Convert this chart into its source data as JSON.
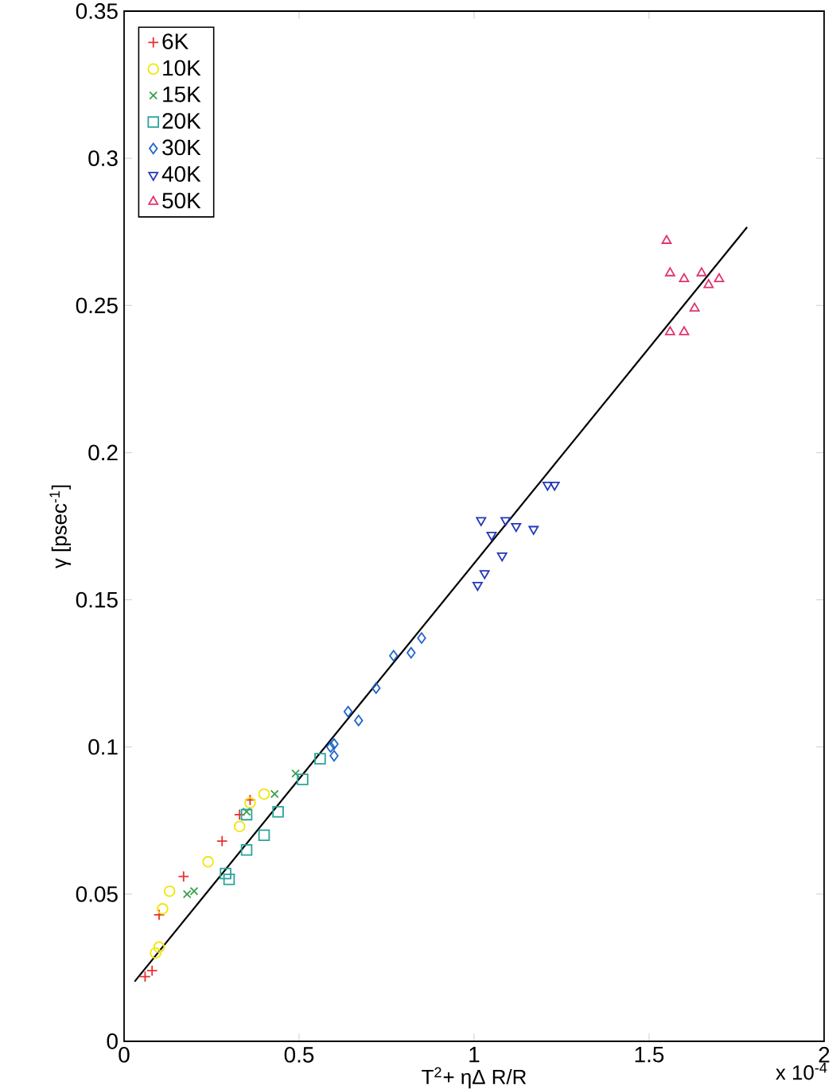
{
  "chart_data": {
    "type": "scatter",
    "xlabel": "T$^{2}$+ ηΔ R/R",
    "ylabel": "γ [psec$^{-1}$]",
    "annotations": [
      "x 10$^{-4}$"
    ],
    "xlim": [
      0,
      2
    ],
    "xticks": [
      0,
      0.5,
      1,
      1.5,
      2
    ],
    "ylim": [
      0,
      0.35
    ],
    "yticks": [
      0,
      0.05,
      0.1,
      0.15,
      0.2,
      0.25,
      0.3,
      0.35
    ],
    "grid": false,
    "legend": "top left",
    "series": [
      {
        "name": "6K",
        "color": "#e8312f",
        "marker": "plus",
        "x": [
          0.06,
          0.08,
          0.1,
          0.17,
          0.28,
          0.33,
          0.36
        ],
        "values": [
          0.022,
          0.024,
          0.043,
          0.056,
          0.068,
          0.077,
          0.082
        ]
      },
      {
        "name": "10K",
        "color": "#f2e600",
        "marker": "circle",
        "x": [
          0.09,
          0.1,
          0.11,
          0.13,
          0.24,
          0.33,
          0.36,
          0.4
        ],
        "values": [
          0.03,
          0.032,
          0.045,
          0.051,
          0.061,
          0.073,
          0.081,
          0.084
        ]
      },
      {
        "name": "15K",
        "color": "#3aa04a",
        "marker": "x",
        "x": [
          0.18,
          0.2,
          0.35,
          0.43,
          0.49
        ],
        "values": [
          0.05,
          0.051,
          0.078,
          0.084,
          0.091
        ]
      },
      {
        "name": "20K",
        "color": "#2aa39a",
        "marker": "square",
        "x": [
          0.29,
          0.3,
          0.35,
          0.35,
          0.4,
          0.44,
          0.51,
          0.56
        ],
        "values": [
          0.057,
          0.055,
          0.065,
          0.077,
          0.07,
          0.078,
          0.089,
          0.096
        ]
      },
      {
        "name": "30K",
        "color": "#1f66c7",
        "marker": "diamond",
        "x": [
          0.59,
          0.6,
          0.6,
          0.64,
          0.67,
          0.72,
          0.77,
          0.82,
          0.85
        ],
        "values": [
          0.1,
          0.097,
          0.101,
          0.112,
          0.109,
          0.12,
          0.131,
          0.132,
          0.137
        ]
      },
      {
        "name": "40K",
        "color": "#2238b8",
        "marker": "triangle-down",
        "x": [
          1.01,
          1.02,
          1.03,
          1.05,
          1.08,
          1.09,
          1.12,
          1.17,
          1.21,
          1.23
        ],
        "values": [
          0.155,
          0.177,
          0.159,
          0.172,
          0.165,
          0.177,
          0.175,
          0.174,
          0.189,
          0.189
        ]
      },
      {
        "name": "50K",
        "color": "#e0336e",
        "marker": "triangle",
        "x": [
          1.55,
          1.56,
          1.56,
          1.6,
          1.6,
          1.63,
          1.65,
          1.67,
          1.7
        ],
        "values": [
          0.272,
          0.261,
          0.241,
          0.241,
          0.259,
          0.249,
          0.261,
          0.257,
          0.259
        ]
      },
      {
        "type": "line",
        "color": "#000000",
        "marker": "none",
        "x": [
          0.03,
          1.78
        ],
        "values": [
          0.0203,
          0.2766
        ]
      }
    ]
  }
}
